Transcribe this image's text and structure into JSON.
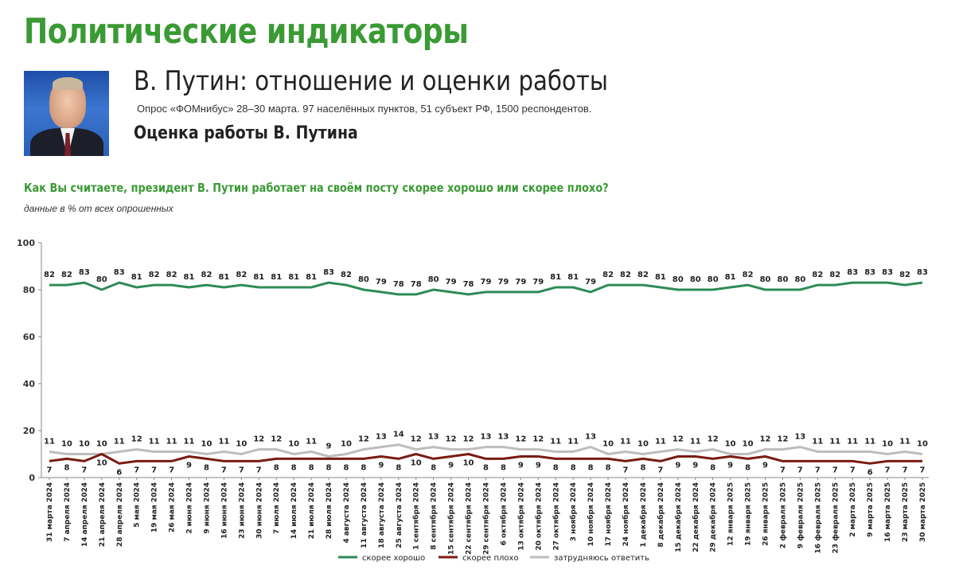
{
  "header": {
    "main_title": "Политические индикаторы",
    "subtitle": "В. Путин: отношение и оценки работы",
    "survey_note": "Опрос «ФОМнибус» 28–30 марта. 97 населённых пунктов, 51 субъект РФ, 1500 респондентов.",
    "section_title": "Оценка работы В. Путина",
    "question": "Как Вы считаете, президент В. Путин работает на своём посту скорее хорошо или скорее плохо?",
    "unit_note": "данные в % от всех опрошенных"
  },
  "chart_data": {
    "type": "line",
    "ylim": [
      0,
      100
    ],
    "yticks": [
      0,
      20,
      40,
      60,
      80,
      100
    ],
    "grid": false,
    "legend_position": "bottom-center",
    "x": [
      "31 марта 2024",
      "7 апреля 2024",
      "14 апреля 2024",
      "21 апреля 2024",
      "28 апреля 2024",
      "5 мая 2024",
      "19 мая 2024",
      "26 мая 2024",
      "2 июня 2024",
      "9 июня 2024",
      "16 июня 2024",
      "23 июня 2024",
      "30 июня 2024",
      "7 июля 2024",
      "14 июля 2024",
      "21 июля 2024",
      "28 июля 2024",
      "4 августа 2024",
      "11 августа 2024",
      "18 августа 2024",
      "25 августа 2024",
      "1 сентября 2024",
      "8 сентября 2024",
      "15 сентября 2024",
      "22 сентября 2024",
      "29 сентября 2024",
      "6 октября 2024",
      "13 октября 2024",
      "20 октября 2024",
      "27 октября 2024",
      "3 ноября 2024",
      "10 ноября 2024",
      "17 ноября 2024",
      "24 ноября 2024",
      "1 декабря 2024",
      "8 декабря 2024",
      "15 декабря 2024",
      "22 декабря 2024",
      "29 декабря 2024",
      "12 января 2025",
      "19 января 2025",
      "26 января 2025",
      "2 февраля 2025",
      "9 февраля 2025",
      "16 февраля 2025",
      "23 февраля 2025",
      "2 марта 2025",
      "9 марта 2025",
      "16 марта 2025",
      "23 марта 2025",
      "30 марта 2025"
    ],
    "series": [
      {
        "name": "скорее хорошо",
        "color": "#2e8b57",
        "values": [
          82,
          82,
          83,
          80,
          83,
          81,
          82,
          82,
          81,
          82,
          81,
          82,
          81,
          81,
          81,
          81,
          83,
          82,
          80,
          79,
          78,
          78,
          80,
          79,
          78,
          79,
          79,
          79,
          79,
          81,
          81,
          79,
          82,
          82,
          82,
          81,
          80,
          80,
          80,
          81,
          82,
          80,
          80,
          80,
          82,
          82,
          83,
          83,
          83,
          82,
          83
        ]
      },
      {
        "name": "скорее плохо",
        "color": "#7a1c12",
        "values": [
          7,
          8,
          7,
          10,
          6,
          7,
          7,
          7,
          9,
          8,
          7,
          7,
          7,
          8,
          8,
          8,
          8,
          8,
          8,
          9,
          8,
          10,
          8,
          9,
          10,
          8,
          8,
          9,
          9,
          8,
          8,
          8,
          8,
          7,
          8,
          7,
          9,
          9,
          8,
          9,
          8,
          9,
          7,
          7,
          7,
          7,
          7,
          6,
          7,
          7,
          7
        ]
      },
      {
        "name": "затрудняюсь ответить",
        "color": "#bdbdbd",
        "values": [
          11,
          10,
          10,
          10,
          11,
          12,
          11,
          11,
          11,
          10,
          11,
          10,
          12,
          12,
          10,
          11,
          9,
          10,
          12,
          13,
          14,
          12,
          13,
          12,
          12,
          13,
          13,
          12,
          12,
          11,
          11,
          13,
          10,
          11,
          10,
          11,
          12,
          11,
          12,
          10,
          10,
          12,
          12,
          13,
          11,
          11,
          11,
          11,
          10,
          11,
          10
        ]
      }
    ]
  }
}
